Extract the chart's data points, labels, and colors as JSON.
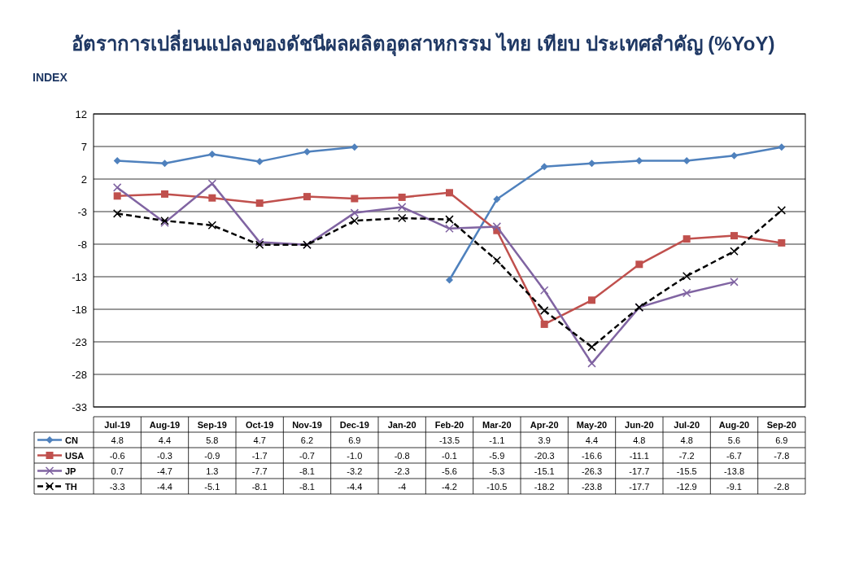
{
  "chart_data": {
    "type": "line",
    "title": "อัตราการเปลี่ยนแปลงของดัชนีผลผลิตอุตสาหกรรม ไทย เทียบ ประเทศสำคัญ (%YoY)",
    "ylabel": "INDEX",
    "categories": [
      "Jul-19",
      "Aug-19",
      "Sep-19",
      "Oct-19",
      "Nov-19",
      "Dec-19",
      "Jan-20",
      "Feb-20",
      "Mar-20",
      "Apr-20",
      "May-20",
      "Jun-20",
      "Jul-20",
      "Aug-20",
      "Sep-20"
    ],
    "series": [
      {
        "name": "CN",
        "color": "#4f81bd",
        "marker": "diamond",
        "line_style": "solid",
        "values": [
          4.8,
          4.4,
          5.8,
          4.7,
          6.2,
          6.9,
          null,
          -13.5,
          -1.1,
          3.9,
          4.4,
          4.8,
          4.8,
          5.6,
          6.9
        ]
      },
      {
        "name": "USA",
        "color": "#c0504d",
        "marker": "square",
        "line_style": "solid",
        "values": [
          -0.6,
          -0.3,
          -0.9,
          -1.7,
          -0.7,
          -1.0,
          -0.8,
          -0.1,
          -5.9,
          -20.3,
          -16.6,
          -11.1,
          -7.2,
          -6.7,
          -7.8
        ]
      },
      {
        "name": "JP",
        "color": "#8064a2",
        "marker": "cross",
        "line_style": "solid",
        "values": [
          0.7,
          -4.7,
          1.3,
          -7.7,
          -8.1,
          -3.2,
          -2.3,
          -5.6,
          -5.3,
          -15.1,
          -26.3,
          -17.7,
          -15.5,
          -13.8,
          null
        ]
      },
      {
        "name": "TH",
        "color": "#000000",
        "marker": "cross",
        "line_style": "dashed",
        "values": [
          -3.3,
          -4.4,
          -5.1,
          -8.1,
          -8.1,
          -4.4,
          -4,
          -4.2,
          -10.5,
          -18.2,
          -23.8,
          -17.7,
          -12.9,
          -9.1,
          -2.8
        ]
      }
    ],
    "value_labels": [
      [
        "4.8",
        "4.4",
        "5.8",
        "4.7",
        "6.2",
        "6.9",
        null,
        "-13.5",
        "-1.1",
        "3.9",
        "4.4",
        "4.8",
        "4.8",
        "5.6",
        "6.9"
      ],
      [
        "-0.6",
        "-0.3",
        "-0.9",
        "-1.7",
        "-0.7",
        "-1.0",
        "-0.8",
        "-0.1",
        "-5.9",
        "-20.3",
        "-16.6",
        "-11.1",
        "-7.2",
        "-6.7",
        "-7.8"
      ],
      [
        "0.7",
        "-4.7",
        "1.3",
        "-7.7",
        "-8.1",
        "-3.2",
        "-2.3",
        "-5.6",
        "-5.3",
        "-15.1",
        "-26.3",
        "-17.7",
        "-15.5",
        "-13.8",
        null
      ],
      [
        "-3.3",
        "-4.4",
        "-5.1",
        "-8.1",
        "-8.1",
        "-4.4",
        "-4",
        "-4.2",
        "-10.5",
        "-18.2",
        "-23.8",
        "-17.7",
        "-12.9",
        "-9.1",
        "-2.8"
      ]
    ],
    "ylim": [
      -33,
      12
    ],
    "yticks": [
      -33,
      -28,
      -23,
      -18,
      -13,
      -8,
      -3,
      2,
      7,
      12
    ],
    "grid": "y",
    "legend": "bottom"
  }
}
